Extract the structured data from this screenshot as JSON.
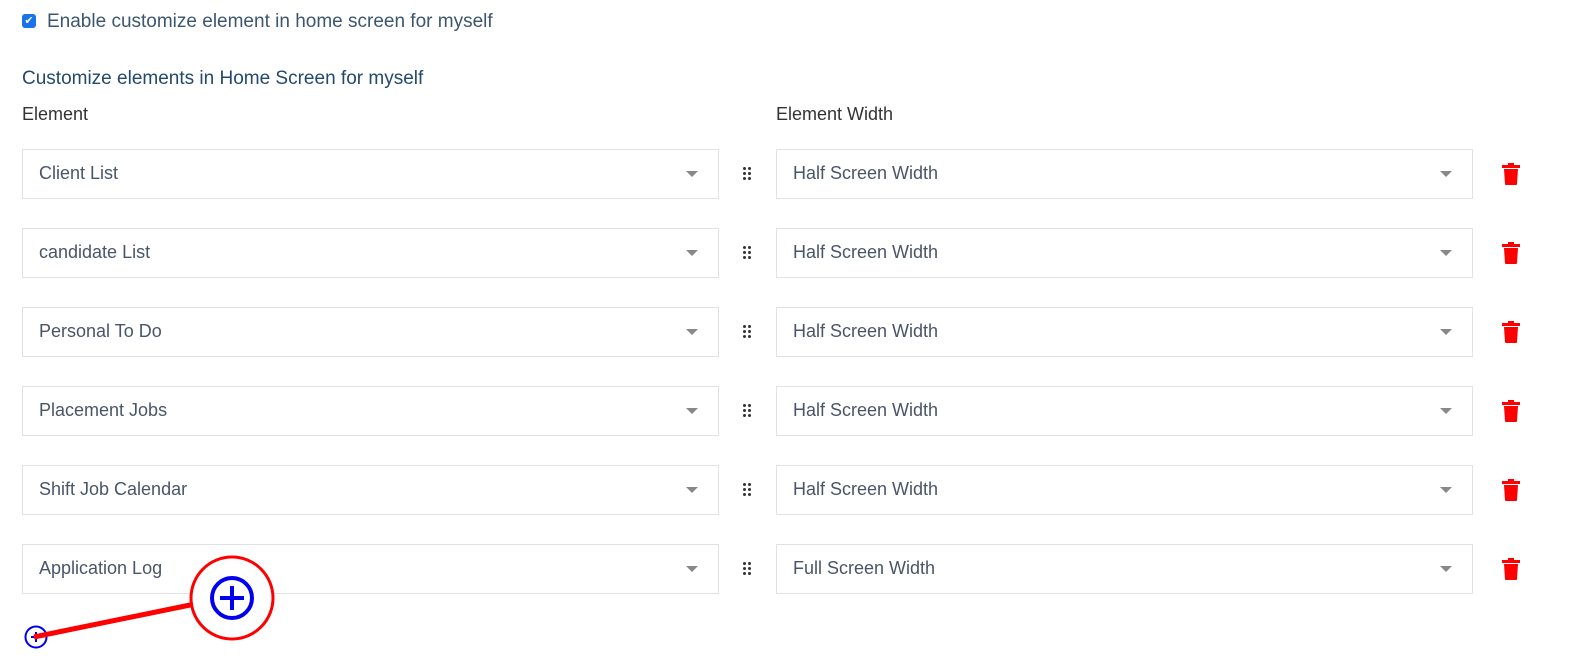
{
  "enable_checkbox": {
    "label": "Enable customize element in home screen for myself",
    "checked": true
  },
  "section_title": "Customize elements in Home Screen for myself",
  "columns": {
    "element": "Element",
    "width": "Element Width"
  },
  "rows": [
    {
      "element": "Client List",
      "width": "Half Screen Width"
    },
    {
      "element": "candidate List",
      "width": "Half Screen Width"
    },
    {
      "element": "Personal To Do",
      "width": "Half Screen Width"
    },
    {
      "element": "Placement Jobs",
      "width": "Half Screen Width"
    },
    {
      "element": "Shift Job Calendar",
      "width": "Half Screen Width"
    },
    {
      "element": "Application Log",
      "width": "Full Screen Width"
    }
  ],
  "icons": {
    "drag": "drag-handle-icon",
    "delete": "trash-icon",
    "add": "plus-circle-icon"
  },
  "colors": {
    "delete": "#ff0000",
    "add": "#0000ee",
    "annotation": "#ff0000",
    "checkbox": "#1a73e8"
  }
}
